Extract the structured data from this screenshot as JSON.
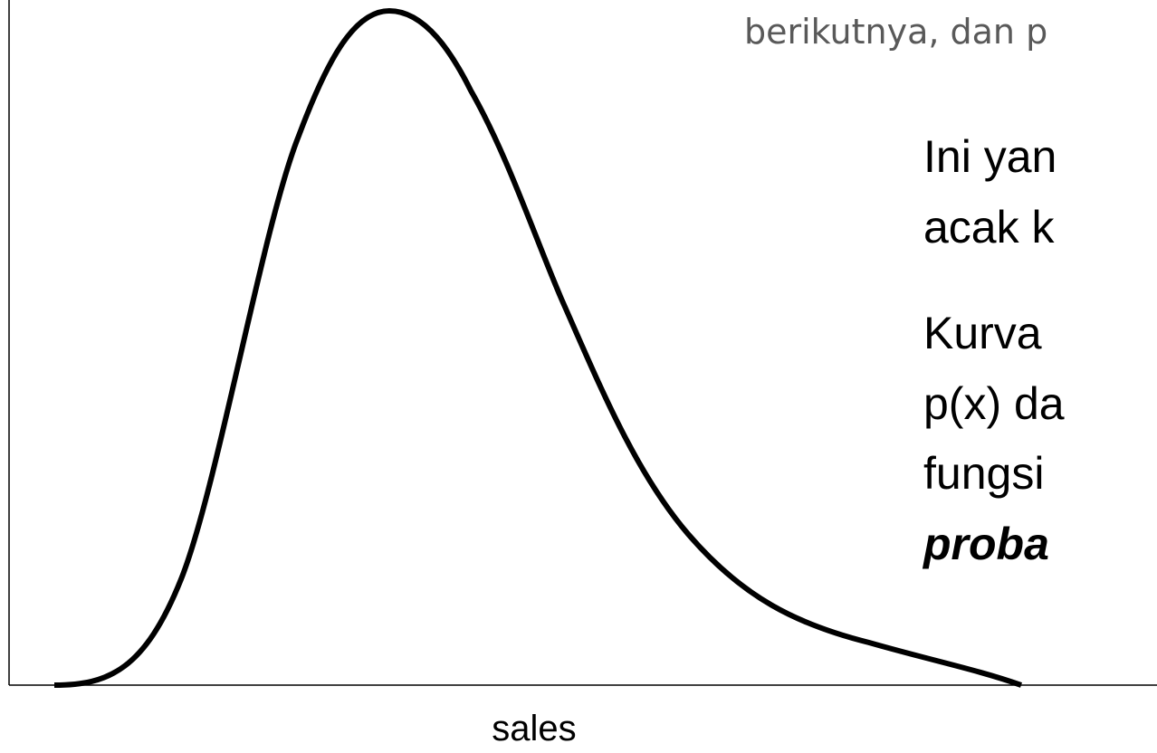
{
  "slide": {
    "top_text": "berikutnya, dan p",
    "body_lines": [
      "Ini yan",
      "acak k",
      "Kurva",
      "p(x) da",
      "fungsi",
      "proba"
    ],
    "x_axis_label": "sales"
  }
}
